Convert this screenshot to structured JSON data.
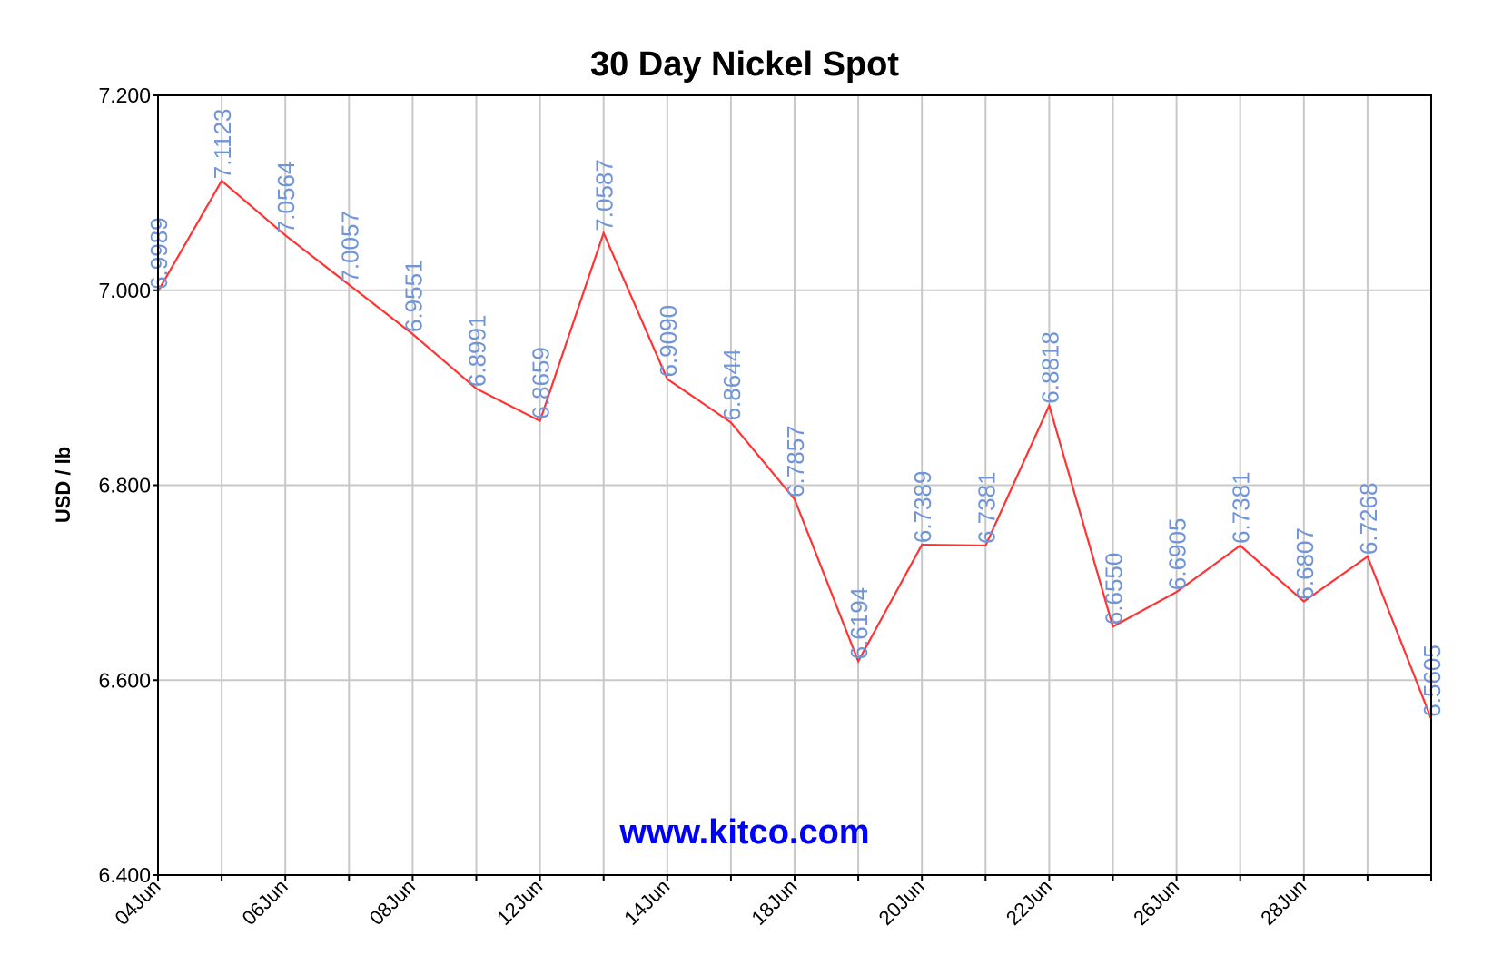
{
  "chart_data": {
    "type": "line",
    "title": "30 Day Nickel Spot",
    "xlabel": "",
    "ylabel": "USD / lb",
    "watermark": "www.kitco.com",
    "ylim": [
      6.4,
      7.2
    ],
    "y_ticks": [
      "7.200",
      "7.000",
      "6.800",
      "6.600",
      "6.400"
    ],
    "x_ticks": [
      "04Jun",
      "06Jun",
      "08Jun",
      "12Jun",
      "14Jun",
      "18Jun",
      "20Jun",
      "22Jun",
      "26Jun",
      "28Jun"
    ],
    "x_tick_indices": [
      0,
      2,
      4,
      6,
      8,
      10,
      12,
      14,
      16,
      18
    ],
    "grid": true,
    "colors": {
      "line": "#ff3333",
      "data_labels": "#6f94d8",
      "watermark": "#0000ff",
      "grid": "#c8c8c8"
    },
    "series": [
      {
        "values": [
          6.9989,
          7.1123,
          7.0564,
          7.0057,
          6.9551,
          6.8991,
          6.8659,
          7.0587,
          6.909,
          6.8644,
          6.7857,
          6.6194,
          6.7389,
          6.7381,
          6.8818,
          6.655,
          6.6905,
          6.7381,
          6.6807,
          6.7268,
          6.5605
        ],
        "labels": [
          "6.9989",
          "7.1123",
          "7.0564",
          "7.0057",
          "6.9551",
          "6.8991",
          "6.8659",
          "7.0587",
          "6.9090",
          "6.8644",
          "6.7857",
          "6.6194",
          "6.7389",
          "6.7381",
          "6.8818",
          "6.6550",
          "6.6905",
          "6.7381",
          "6.6807",
          "6.7268",
          "6.5605"
        ]
      }
    ]
  }
}
